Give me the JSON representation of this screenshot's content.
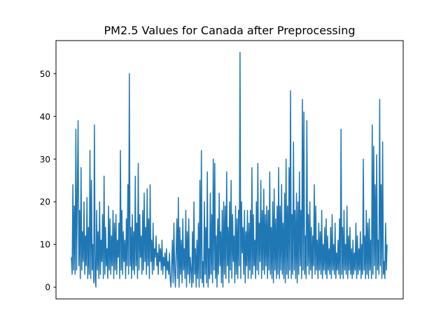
{
  "chart_data": {
    "type": "line",
    "title": "PM2.5 Values for Canada after Preprocessing",
    "xlabel": "",
    "ylabel": "",
    "ylim": [
      -2.75,
      57.75
    ],
    "y_ticks": [
      0,
      10,
      20,
      30,
      40,
      50
    ],
    "x_ticks": [],
    "grid": false,
    "legend": "none",
    "line_color": "#1f77b4",
    "series": [
      {
        "name": "",
        "values": [
          7,
          3,
          24,
          4,
          19,
          3,
          37,
          4,
          22,
          39,
          5,
          18,
          2,
          28,
          4,
          13,
          6,
          20,
          3,
          12,
          5,
          21,
          2,
          14,
          3,
          32,
          2,
          25,
          4,
          10,
          1,
          38,
          2,
          0,
          18,
          4,
          13,
          2,
          20,
          3,
          11,
          6,
          17,
          2,
          26,
          3,
          14,
          5,
          9,
          2,
          19,
          4,
          16,
          3,
          12,
          5,
          18,
          2,
          15,
          4,
          17,
          3,
          11,
          7,
          15,
          2,
          32,
          4,
          18,
          3,
          13,
          6,
          11,
          2,
          16,
          5,
          24,
          3,
          50,
          5,
          14,
          2,
          17,
          4,
          13,
          3,
          26,
          5,
          15,
          2,
          29,
          4,
          17,
          7,
          12,
          3,
          18,
          4,
          22,
          6,
          14,
          3,
          23,
          5,
          16,
          2,
          24,
          6,
          11,
          3,
          15,
          4,
          9,
          7,
          12,
          5,
          8,
          3,
          10,
          6,
          9,
          4,
          11,
          3,
          7,
          5,
          8,
          2,
          9,
          4,
          6,
          3,
          8,
          2,
          0,
          5,
          11,
          1,
          15,
          4,
          0,
          8,
          16,
          2,
          21,
          0,
          14,
          3,
          11,
          1,
          16,
          4,
          9,
          2,
          18,
          0,
          13,
          3,
          16,
          1,
          7,
          4,
          0,
          13,
          1,
          20,
          3,
          9,
          0,
          11,
          2,
          15,
          0,
          25,
          2,
          32,
          1,
          6,
          0,
          20,
          3,
          14,
          1,
          27,
          0,
          9,
          2,
          22,
          3,
          17,
          1,
          30,
          4,
          29,
          2,
          12,
          0,
          16,
          3,
          22,
          5,
          13,
          1,
          18,
          0,
          20,
          3,
          19,
          2,
          27,
          5,
          14,
          1,
          20,
          4,
          25,
          2,
          17,
          6,
          12,
          1,
          19,
          3,
          16,
          2,
          18,
          5,
          55,
          2,
          20,
          8,
          14,
          3,
          18,
          1,
          13,
          5,
          18,
          2,
          15,
          4,
          18,
          2,
          28,
          3,
          17,
          5,
          11,
          2,
          20,
          4,
          29,
          3,
          15,
          6,
          25,
          2,
          18,
          4,
          23,
          3,
          17,
          5,
          19,
          2,
          18,
          4,
          27,
          3,
          14,
          2,
          20,
          1,
          23,
          4,
          16,
          2,
          19,
          3,
          28,
          2,
          19,
          4,
          24,
          3,
          15,
          2,
          22,
          1,
          30,
          3,
          19,
          2,
          28,
          4,
          46,
          2,
          17,
          3,
          34,
          4,
          18,
          2,
          22,
          1,
          20,
          3,
          27,
          5,
          18,
          2,
          44,
          4,
          41,
          3,
          12,
          2,
          39,
          5,
          17,
          3,
          20,
          4,
          14,
          2,
          12,
          5,
          24,
          3,
          19,
          4,
          11,
          2,
          15,
          4,
          13,
          3,
          18,
          2,
          10,
          4,
          14,
          3,
          16,
          2,
          12,
          4,
          9,
          3,
          14,
          2,
          17,
          4,
          10,
          3,
          15,
          2,
          8,
          4,
          11,
          3,
          16,
          2,
          37,
          3,
          14,
          2,
          18,
          4,
          10,
          3,
          19,
          2,
          12,
          4,
          14,
          3,
          9,
          2,
          11,
          3,
          8,
          4,
          15,
          2,
          12,
          3,
          9,
          4,
          13,
          2,
          10,
          3,
          30,
          4,
          12,
          2,
          18,
          3,
          15,
          2,
          16,
          4,
          11,
          2,
          38,
          3,
          33,
          5,
          24,
          2,
          31,
          4,
          11,
          3,
          44,
          5,
          24,
          2,
          34,
          3,
          6,
          2,
          15,
          4,
          10
        ]
      }
    ]
  }
}
